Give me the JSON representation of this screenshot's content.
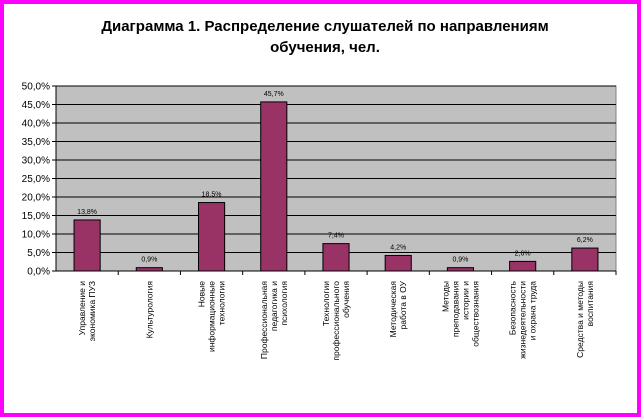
{
  "frame_color": "#ff00ff",
  "chart_data": {
    "type": "bar",
    "title_lines": [
      "Диаграмма 1. Распределение слушателей по направлениям",
      "обучения, чел."
    ],
    "xlabel": "",
    "ylabel": "",
    "ylim": [
      0,
      50
    ],
    "yticks": [
      "0,0%",
      "5,0%",
      "10,0%",
      "15,0%",
      "20,0%",
      "25,0%",
      "30,0%",
      "35,0%",
      "40,0%",
      "45,0%",
      "50,0%"
    ],
    "grid": true,
    "legend": "none",
    "plot_bg_color": "#c0c0c0",
    "bar_color": "#993366",
    "categories": [
      [
        "Управление и",
        "экономика ПУЗ"
      ],
      [
        "Культурология"
      ],
      [
        "Новые",
        "информационные",
        "технологии"
      ],
      [
        "Профессиональная",
        "педагогика и",
        "психология"
      ],
      [
        "Технологии",
        "профессионального",
        "обучения"
      ],
      [
        "Методическая",
        "работа в ОУ"
      ],
      [
        "Методы",
        "преподавания",
        "истории и",
        "обществознания"
      ],
      [
        "Безопасность",
        "жизнедеятельности",
        "и охрана труда"
      ],
      [
        "Средства и методы",
        "воспитания"
      ]
    ],
    "values": [
      13.8,
      0.9,
      18.5,
      45.7,
      7.4,
      4.2,
      0.9,
      2.6,
      6.2
    ],
    "data_labels": [
      "13,8%",
      "0,9%",
      "18,5%",
      "45,7%",
      "7,4%",
      "4,2%",
      "0,9%",
      "2,6%",
      "6,2%"
    ]
  }
}
